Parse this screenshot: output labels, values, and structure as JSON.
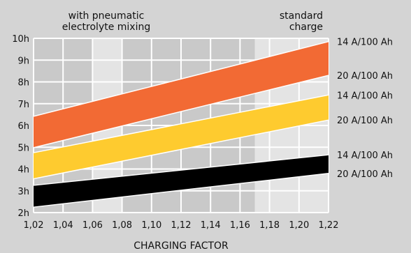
{
  "chart_data": {
    "type": "area",
    "x_ticks": [
      "1,02",
      "1,04",
      "1,06",
      "1,08",
      "1,10",
      "1,12",
      "1,14",
      "1,16",
      "1,18",
      "1,20",
      "1,22"
    ],
    "y_ticks": [
      "2h",
      "3h",
      "4h",
      "5h",
      "6h",
      "7h",
      "8h",
      "9h",
      "10h"
    ],
    "xlim": [
      1.02,
      1.22
    ],
    "ylim": [
      2,
      10
    ],
    "xlabel": "CHARGING FACTOR",
    "annotations": {
      "left_zone": "with pneumatic\nelectrolyte mixing",
      "right_zone": "standard\ncharge"
    },
    "zones": [
      {
        "x": [
          1.06,
          1.08
        ],
        "shade": "light"
      },
      {
        "x": [
          1.17,
          1.22
        ],
        "shade": "light"
      }
    ],
    "bands": [
      {
        "color": "#f26a34",
        "upper": {
          "x": [
            1.02,
            1.22
          ],
          "y": [
            6.42,
            9.85
          ],
          "label": "14 A/100 Ah"
        },
        "lower": {
          "x": [
            1.02,
            1.22
          ],
          "y": [
            4.98,
            8.3
          ],
          "label": "20 A/100 Ah"
        }
      },
      {
        "color": "#fecb2f",
        "upper": {
          "x": [
            1.02,
            1.22
          ],
          "y": [
            4.75,
            7.4
          ],
          "label": "14 A/100 Ah"
        },
        "lower": {
          "x": [
            1.02,
            1.22
          ],
          "y": [
            3.55,
            6.25
          ],
          "label": "20 A/100 Ah"
        }
      },
      {
        "color": "#000000",
        "upper": {
          "x": [
            1.02,
            1.22
          ],
          "y": [
            3.25,
            4.65
          ],
          "label": "14 A/100 Ah"
        },
        "lower": {
          "x": [
            1.02,
            1.22
          ],
          "y": [
            2.25,
            3.8
          ],
          "label": "20 A/100 Ah"
        }
      }
    ],
    "colors": {
      "background": "#d4d4d4",
      "plot": "#c9c9c9",
      "zone": "#e4e4e4",
      "grid": "#ffffff"
    }
  }
}
